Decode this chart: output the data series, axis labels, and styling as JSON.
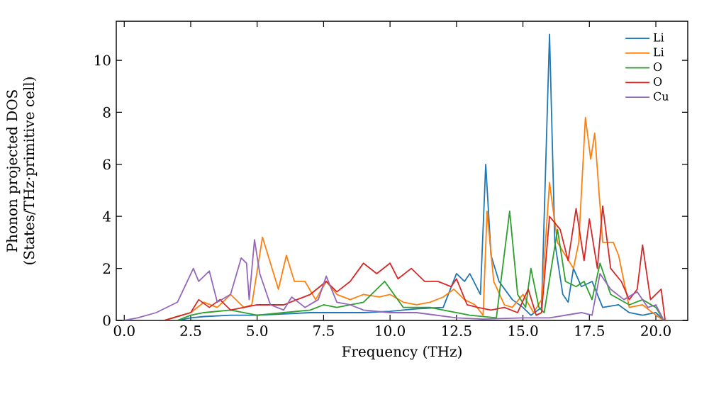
{
  "chart_data": {
    "type": "line",
    "xlabel": "Frequency (THz)",
    "ylabel": "Phonon projected DOS\n(States/THz·primitive cell)",
    "xlim": [
      -0.3,
      21.2
    ],
    "ylim": [
      0,
      11.5
    ],
    "xticks": [
      {
        "value": 0,
        "label": "0.0"
      },
      {
        "value": 2.5,
        "label": "2.5"
      },
      {
        "value": 5,
        "label": "5.0"
      },
      {
        "value": 7.5,
        "label": "7.5"
      },
      {
        "value": 10,
        "label": "10.0"
      },
      {
        "value": 12.5,
        "label": "12.5"
      },
      {
        "value": 15,
        "label": "15.0"
      },
      {
        "value": 17.5,
        "label": "17.5"
      },
      {
        "value": 20,
        "label": "20.0"
      }
    ],
    "yticks": [
      0,
      2,
      4,
      6,
      8,
      10
    ],
    "grid": false,
    "legend": "top right",
    "marker": "none",
    "line_style": "solid",
    "series": [
      {
        "name": "Li",
        "color": "#1f77b4",
        "x": [
          0,
          2,
          2.5,
          3,
          4,
          5,
          6,
          7,
          8,
          9,
          10,
          10.5,
          11,
          12,
          12.5,
          12.8,
          13.0,
          13.4,
          13.6,
          13.8,
          14.1,
          14.6,
          15.0,
          15.3,
          15.7,
          16.0,
          16.2,
          16.5,
          16.7,
          16.9,
          17.2,
          17.6,
          18.0,
          18.6,
          19.0,
          19.5,
          20.0,
          20.3,
          21
        ],
        "values": [
          0,
          0,
          0.1,
          0.15,
          0.2,
          0.2,
          0.25,
          0.3,
          0.3,
          0.3,
          0.35,
          0.4,
          0.45,
          0.5,
          1.8,
          1.5,
          1.8,
          1.0,
          6.0,
          2.5,
          1.5,
          0.8,
          0.5,
          0.2,
          0.5,
          11.0,
          3.0,
          1.0,
          0.7,
          2.0,
          1.3,
          1.5,
          0.5,
          0.6,
          0.3,
          0.2,
          0.3,
          0,
          0
        ]
      },
      {
        "name": "Li",
        "color": "#ff7f0e",
        "x": [
          0,
          1.5,
          2.5,
          3.0,
          3.5,
          4.0,
          4.5,
          4.8,
          5.2,
          5.5,
          5.8,
          6.1,
          6.4,
          6.8,
          7.2,
          7.6,
          8.0,
          8.5,
          9.0,
          9.6,
          10.0,
          10.5,
          11.0,
          11.5,
          12.0,
          12.4,
          12.8,
          13.2,
          13.5,
          13.65,
          13.9,
          14.3,
          14.6,
          15.0,
          15.4,
          15.7,
          16.0,
          16.3,
          16.6,
          16.9,
          17.1,
          17.35,
          17.55,
          17.7,
          18.0,
          18.4,
          18.6,
          19.0,
          19.5,
          20.0,
          20.3,
          21
        ],
        "values": [
          0,
          0,
          0.3,
          0.7,
          0.5,
          1.0,
          0.5,
          0.6,
          3.2,
          2.2,
          1.2,
          2.5,
          1.5,
          1.5,
          0.8,
          1.5,
          1.0,
          0.8,
          1.0,
          0.9,
          1.0,
          0.7,
          0.6,
          0.7,
          0.9,
          1.2,
          0.8,
          0.6,
          0.2,
          4.2,
          1.5,
          0.6,
          0.5,
          1.0,
          0.3,
          0.8,
          5.3,
          3.0,
          2.5,
          2.0,
          3.0,
          7.8,
          6.2,
          7.2,
          3.0,
          3.0,
          2.5,
          0.5,
          0.6,
          0.2,
          0,
          0
        ]
      },
      {
        "name": "O",
        "color": "#2ca02c",
        "x": [
          0,
          2,
          2.5,
          3.0,
          4.0,
          5.0,
          6.0,
          7.0,
          7.5,
          8.0,
          9.0,
          9.8,
          10.5,
          11.5,
          12.0,
          12.5,
          13.0,
          14.0,
          14.5,
          14.8,
          15.1,
          15.3,
          15.6,
          15.8,
          16.3,
          16.6,
          17.0,
          17.3,
          17.6,
          17.9,
          18.3,
          19.0,
          19.5,
          20.0,
          20.3,
          21
        ],
        "values": [
          0,
          0,
          0.2,
          0.3,
          0.4,
          0.2,
          0.3,
          0.4,
          0.6,
          0.5,
          0.7,
          1.5,
          0.5,
          0.5,
          0.4,
          0.3,
          0.2,
          0.1,
          4.2,
          1.0,
          0.5,
          2.0,
          0.5,
          0.3,
          3.5,
          1.5,
          1.3,
          1.5,
          0.8,
          2.2,
          1.0,
          0.6,
          0.8,
          0.5,
          0,
          0
        ]
      },
      {
        "name": "O",
        "color": "#d62728",
        "x": [
          0,
          1.5,
          2.5,
          2.8,
          3.2,
          3.6,
          4.0,
          4.5,
          5.0,
          6.0,
          6.5,
          7.0,
          7.6,
          8.0,
          8.5,
          9.0,
          9.5,
          10.0,
          10.3,
          10.8,
          11.3,
          11.8,
          12.3,
          12.5,
          12.9,
          13.3,
          13.8,
          14.3,
          14.8,
          15.2,
          15.5,
          15.7,
          16.0,
          16.4,
          16.7,
          17.0,
          17.3,
          17.5,
          17.8,
          18.0,
          18.3,
          18.7,
          19.0,
          19.3,
          19.5,
          19.8,
          20.2,
          20.35,
          21
        ],
        "values": [
          0,
          0,
          0.3,
          0.8,
          0.5,
          0.8,
          0.4,
          0.5,
          0.6,
          0.6,
          0.8,
          1.0,
          1.5,
          1.1,
          1.5,
          2.2,
          1.8,
          2.2,
          1.6,
          2.0,
          1.5,
          1.5,
          1.3,
          1.6,
          0.6,
          0.5,
          0.4,
          0.5,
          0.3,
          1.2,
          0.2,
          0.3,
          4.0,
          3.5,
          2.3,
          4.3,
          2.3,
          3.9,
          2.0,
          4.4,
          2.0,
          1.5,
          0.8,
          1.2,
          2.9,
          0.8,
          1.2,
          0,
          0
        ]
      },
      {
        "name": "Cu",
        "color": "#9467bd",
        "x": [
          0,
          0.5,
          1.2,
          2.0,
          2.6,
          2.8,
          3.2,
          3.5,
          4.0,
          4.4,
          4.6,
          4.7,
          4.9,
          5.1,
          5.5,
          6.0,
          6.3,
          6.8,
          7.3,
          7.6,
          8.0,
          8.5,
          9.0,
          10.0,
          11.0,
          12.5,
          13.5,
          15.0,
          16.0,
          17.2,
          17.6,
          17.9,
          18.3,
          18.8,
          19.3,
          19.7,
          20.0,
          20.3,
          21
        ],
        "values": [
          0,
          0.1,
          0.3,
          0.7,
          2.0,
          1.5,
          1.9,
          0.7,
          1.0,
          2.4,
          2.2,
          0.8,
          3.1,
          1.8,
          0.6,
          0.4,
          0.9,
          0.5,
          0.8,
          1.7,
          0.7,
          0.6,
          0.4,
          0.3,
          0.3,
          0.1,
          0.05,
          0.1,
          0.1,
          0.3,
          0.2,
          1.8,
          1.2,
          0.8,
          1.1,
          0.5,
          0.6,
          0,
          0
        ]
      }
    ]
  }
}
